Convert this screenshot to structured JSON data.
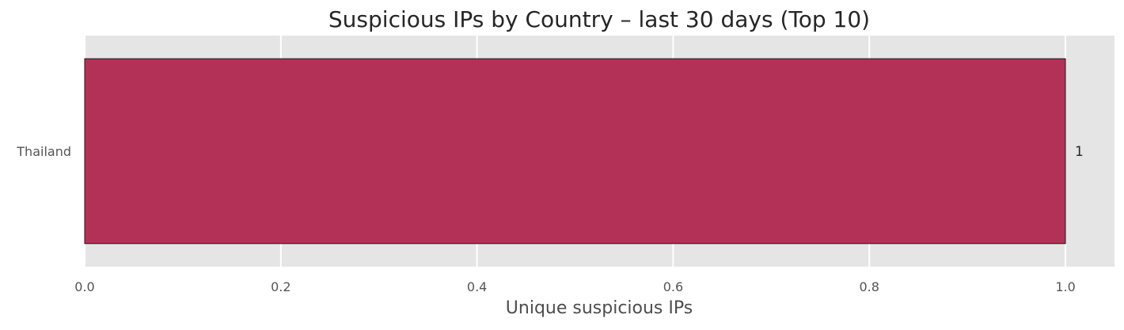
{
  "chart_data": {
    "type": "bar",
    "orientation": "horizontal",
    "title": "Suspicious IPs by Country – last 30 days (Top 10)",
    "xlabel": "Unique suspicious IPs",
    "ylabel": "",
    "categories": [
      "Thailand"
    ],
    "values": [
      1
    ],
    "data_labels": [
      "1"
    ],
    "xlim": [
      0,
      1.05
    ],
    "xticks": [
      0.0,
      0.2,
      0.4,
      0.6,
      0.8,
      1.0
    ],
    "xtick_labels": [
      "0.0",
      "0.2",
      "0.4",
      "0.6",
      "0.8",
      "1.0"
    ],
    "grid": true,
    "colors": {
      "bar": "#b33157",
      "bar_edge": "#1a1a1a",
      "plot_background": "#e5e5e5",
      "grid": "#ffffff"
    }
  }
}
